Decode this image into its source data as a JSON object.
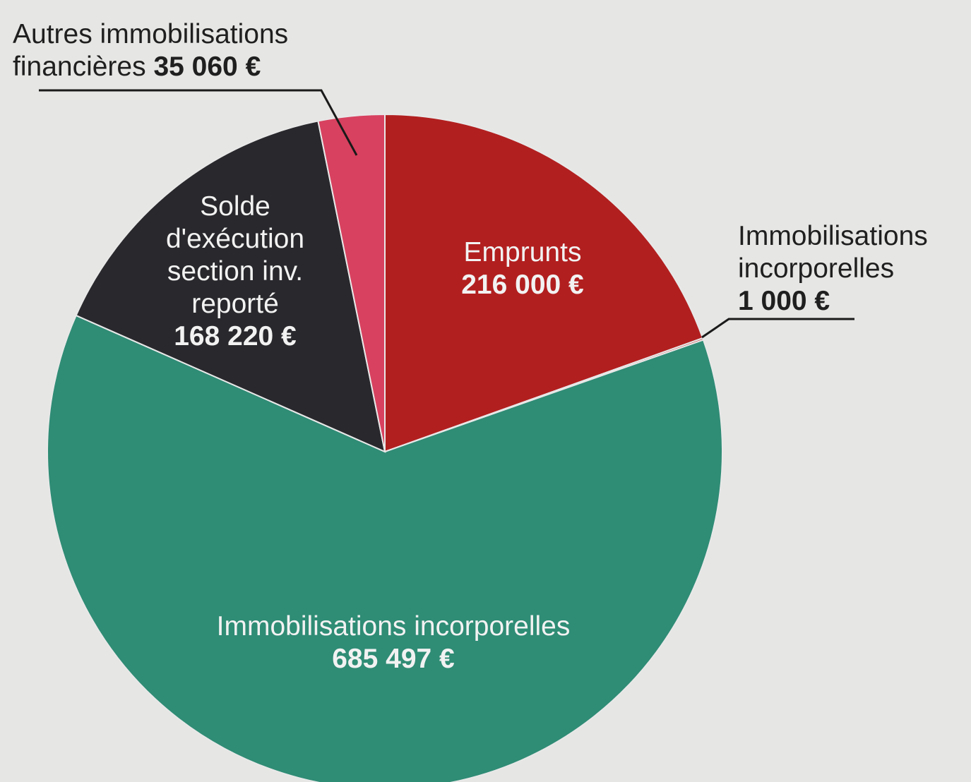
{
  "chart_data": {
    "type": "pie",
    "categories": [
      "Emprunts",
      "Immobilisations incorporelles",
      "Immobilisations incorporelles",
      "Solde d'exécution section inv. reporté",
      "Autres immobilisations financières"
    ],
    "values": [
      216000,
      1000,
      685497,
      168220,
      35060
    ],
    "value_labels": [
      "216 000 €",
      "1 000 €",
      "685 497 €",
      "168 220 €",
      "35 060 €"
    ],
    "colors": [
      "#b21f1f",
      "#c93a3a",
      "#2f8c75",
      "#29292d",
      "#d8415f"
    ]
  }
}
